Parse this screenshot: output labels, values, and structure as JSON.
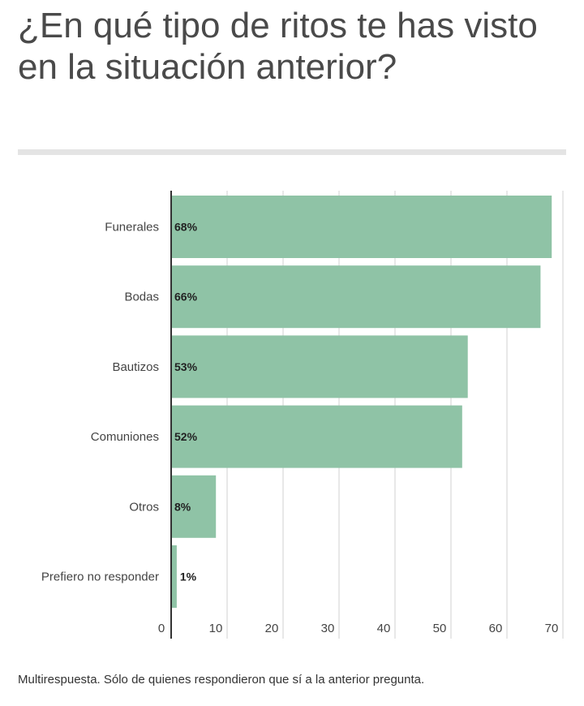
{
  "title": "¿En qué tipo de ritos te has visto en la situación anterior?",
  "note": "Multirespuesta. Sólo de quienes respondieron que sí a la anterior pregunta.",
  "colors": {
    "bar": "#8fc3a6",
    "grid": "#d0d0d0",
    "axis": "#333333",
    "text": "#444444"
  },
  "chart_data": {
    "type": "bar",
    "orientation": "horizontal",
    "categories": [
      "Funerales",
      "Bodas",
      "Bautizos",
      "Comuniones",
      "Otros",
      "Prefiero no responder"
    ],
    "values": [
      68,
      66,
      53,
      52,
      8,
      1
    ],
    "data_labels": [
      "68%",
      "66%",
      "53%",
      "52%",
      "8%",
      "1%"
    ],
    "xlim": [
      0,
      70
    ],
    "xticks": [
      "0",
      "10",
      "20",
      "30",
      "40",
      "50",
      "60",
      "70"
    ],
    "grid": true
  }
}
